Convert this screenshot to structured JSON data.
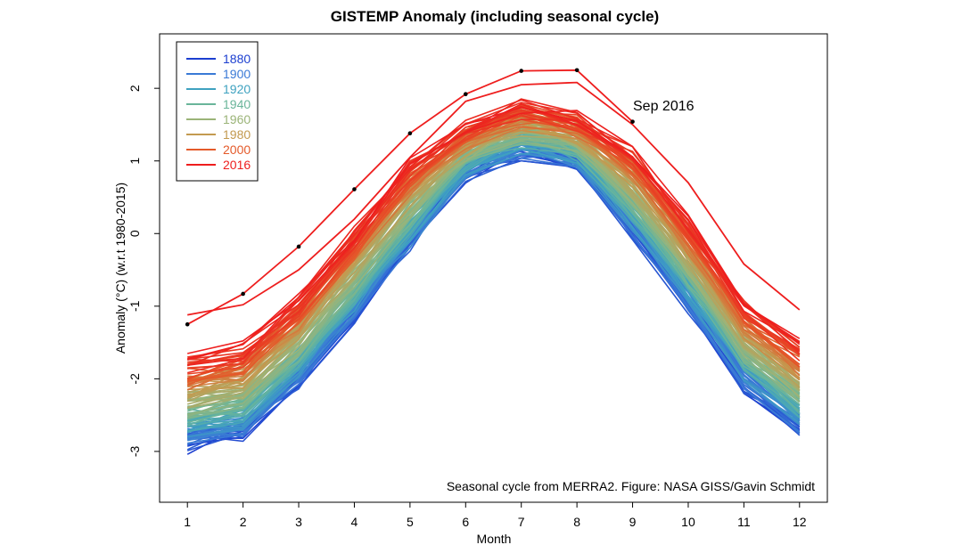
{
  "chart_data": {
    "type": "line",
    "title": "GISTEMP Anomaly (including seasonal cycle)",
    "xlabel": "Month",
    "ylabel": "Anomaly (°C) (w.r.t 1980-2015)",
    "xlim": [
      0.5,
      12.5
    ],
    "ylim": [
      -3.7,
      2.75
    ],
    "x_ticks": [
      1,
      2,
      3,
      4,
      5,
      6,
      7,
      8,
      9,
      10,
      11,
      12
    ],
    "x_tick_labels": [
      "1",
      "2",
      "3",
      "4",
      "5",
      "6",
      "7",
      "8",
      "9",
      "10",
      "11",
      "12"
    ],
    "y_ticks": [
      -3,
      -2,
      -1,
      0,
      1,
      2
    ],
    "y_tick_labels": [
      "-3",
      "-2",
      "-1",
      "0",
      "1",
      "2"
    ],
    "legend_position": "top-left",
    "legend": [
      {
        "label": "1880",
        "color": "#1c3fd0"
      },
      {
        "label": "1900",
        "color": "#3a7ad6"
      },
      {
        "label": "1920",
        "color": "#3fa2c0"
      },
      {
        "label": "1940",
        "color": "#6ab59a"
      },
      {
        "label": "1960",
        "color": "#9bb478"
      },
      {
        "label": "1980",
        "color": "#c39a50"
      },
      {
        "label": "2000",
        "color": "#e45a2a"
      },
      {
        "label": "2016",
        "color": "#ee1e1e"
      }
    ],
    "months": [
      1,
      2,
      3,
      4,
      5,
      6,
      7,
      8,
      9,
      10,
      11,
      12
    ],
    "seasonal_cycle": [
      -2.3,
      -2.15,
      -1.45,
      -0.55,
      0.4,
      1.15,
      1.45,
      1.3,
      0.6,
      -0.4,
      -1.5,
      -2.1
    ],
    "bundle_offset_range": [
      -0.6,
      0.55
    ],
    "series_2016": {
      "name": "2016",
      "x": [
        1,
        2,
        3,
        4,
        5,
        6,
        7,
        8,
        9
      ],
      "values": [
        -1.25,
        -0.83,
        -0.18,
        0.61,
        1.38,
        1.92,
        2.24,
        2.25,
        1.54
      ]
    },
    "top_prior_series": {
      "name": "record year",
      "values": [
        -1.12,
        -0.98,
        -0.5,
        0.2,
        1.05,
        1.82,
        2.05,
        2.08,
        1.5,
        0.7,
        -0.42,
        -1.05
      ]
    },
    "annotation": "Sep 2016",
    "credit": "Seasonal cycle from MERRA2. Figure: NASA GISS/Gavin Schmidt"
  }
}
